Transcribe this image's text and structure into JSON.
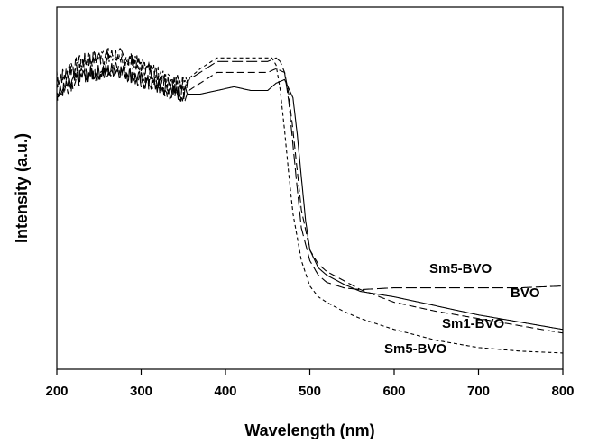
{
  "chart_data": {
    "type": "line",
    "xlabel": "Wavelength (nm)",
    "ylabel": "Intensity (a.u.)",
    "xlim": [
      200,
      800
    ],
    "ylim": [
      0,
      1
    ],
    "xticks": [
      "200",
      "300",
      "400",
      "500",
      "600",
      "700",
      "800"
    ],
    "grid": false,
    "series": [
      {
        "name": "Sm5-BVO",
        "label_text": "Sm5-BVO",
        "dash": "long-dash",
        "x": [
          200,
          230,
          270,
          300,
          330,
          350,
          370,
          390,
          410,
          430,
          450,
          460,
          465,
          470,
          475,
          480,
          485,
          490,
          500,
          510,
          520,
          540,
          560,
          600,
          650,
          700,
          750,
          800
        ],
        "y": [
          0.8,
          0.85,
          0.87,
          0.84,
          0.8,
          0.79,
          0.82,
          0.85,
          0.85,
          0.85,
          0.85,
          0.86,
          0.85,
          0.82,
          0.74,
          0.62,
          0.5,
          0.39,
          0.3,
          0.26,
          0.24,
          0.225,
          0.22,
          0.225,
          0.225,
          0.225,
          0.225,
          0.23
        ]
      },
      {
        "name": "BVO",
        "label_text": "BVO",
        "dash": "solid",
        "x": [
          200,
          230,
          270,
          300,
          330,
          350,
          370,
          390,
          410,
          430,
          450,
          460,
          470,
          480,
          485,
          490,
          495,
          500,
          510,
          520,
          540,
          560,
          600,
          650,
          700,
          750,
          800
        ],
        "y": [
          0.76,
          0.81,
          0.83,
          0.8,
          0.77,
          0.76,
          0.76,
          0.77,
          0.78,
          0.77,
          0.77,
          0.79,
          0.8,
          0.75,
          0.65,
          0.53,
          0.41,
          0.33,
          0.28,
          0.26,
          0.235,
          0.215,
          0.2,
          0.175,
          0.15,
          0.13,
          0.11
        ]
      },
      {
        "name": "Sm1-BVO",
        "label_text": "Sm1-BVO",
        "dash": "dash",
        "x": [
          200,
          230,
          270,
          300,
          330,
          350,
          370,
          390,
          410,
          430,
          450,
          460,
          470,
          475,
          480,
          485,
          490,
          500,
          510,
          520,
          540,
          560,
          600,
          650,
          700,
          750,
          800
        ],
        "y": [
          0.76,
          0.81,
          0.83,
          0.8,
          0.77,
          0.76,
          0.79,
          0.82,
          0.82,
          0.82,
          0.82,
          0.83,
          0.82,
          0.76,
          0.66,
          0.55,
          0.44,
          0.33,
          0.29,
          0.27,
          0.245,
          0.22,
          0.185,
          0.16,
          0.14,
          0.12,
          0.1
        ]
      },
      {
        "name": "Sm5-BVO",
        "label_text": "Sm5-BVO",
        "dash": "short-dash",
        "x": [
          200,
          230,
          270,
          300,
          330,
          350,
          370,
          390,
          410,
          430,
          450,
          455,
          460,
          465,
          470,
          475,
          480,
          490,
          500,
          510,
          520,
          540,
          560,
          600,
          650,
          700,
          750,
          800
        ],
        "y": [
          0.8,
          0.85,
          0.87,
          0.84,
          0.8,
          0.79,
          0.83,
          0.86,
          0.86,
          0.86,
          0.86,
          0.86,
          0.84,
          0.77,
          0.66,
          0.54,
          0.43,
          0.3,
          0.23,
          0.2,
          0.185,
          0.16,
          0.14,
          0.11,
          0.08,
          0.06,
          0.05,
          0.045
        ]
      }
    ]
  }
}
